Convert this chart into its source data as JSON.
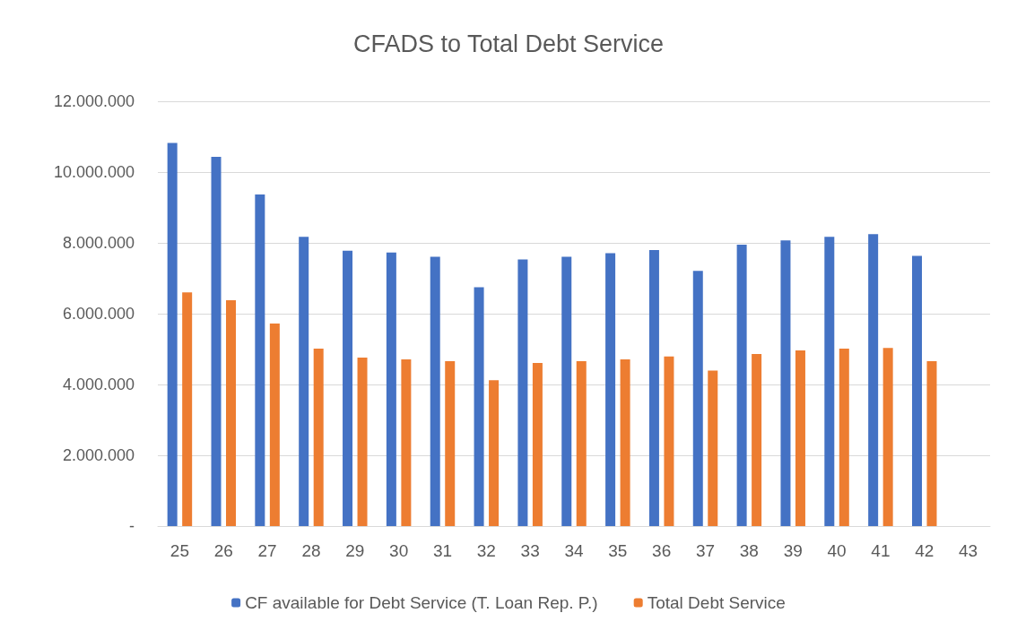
{
  "chart_data": {
    "type": "bar",
    "title": "CFADS to Total Debt Service",
    "categories": [
      "25",
      "26",
      "27",
      "28",
      "29",
      "30",
      "31",
      "32",
      "33",
      "34",
      "35",
      "36",
      "37",
      "38",
      "39",
      "40",
      "41",
      "42",
      "43"
    ],
    "series": [
      {
        "name": "CF available for Debt Service (T. Loan Rep. P.)",
        "color": "#4472c4",
        "values": [
          10820000,
          10430000,
          9370000,
          8170000,
          7780000,
          7730000,
          7610000,
          6750000,
          7530000,
          7610000,
          7710000,
          7800000,
          7210000,
          7950000,
          8070000,
          8170000,
          8250000,
          7630000,
          null
        ]
      },
      {
        "name": "Total Debt Service",
        "color": "#ed7d31",
        "values": [
          6600000,
          6380000,
          5720000,
          5010000,
          4760000,
          4710000,
          4660000,
          4120000,
          4610000,
          4660000,
          4710000,
          4790000,
          4390000,
          4860000,
          4960000,
          5010000,
          5030000,
          4660000,
          null
        ]
      }
    ],
    "ylim": [
      0,
      12000000
    ],
    "yticks": [
      {
        "value": 0,
        "label": "-"
      },
      {
        "value": 2000000,
        "label": "2.000.000"
      },
      {
        "value": 4000000,
        "label": "4.000.000"
      },
      {
        "value": 6000000,
        "label": "6.000.000"
      },
      {
        "value": 8000000,
        "label": "8.000.000"
      },
      {
        "value": 10000000,
        "label": "10.000.000"
      },
      {
        "value": 12000000,
        "label": "12.000.000"
      }
    ],
    "grid": "y",
    "legend": "bottom"
  }
}
